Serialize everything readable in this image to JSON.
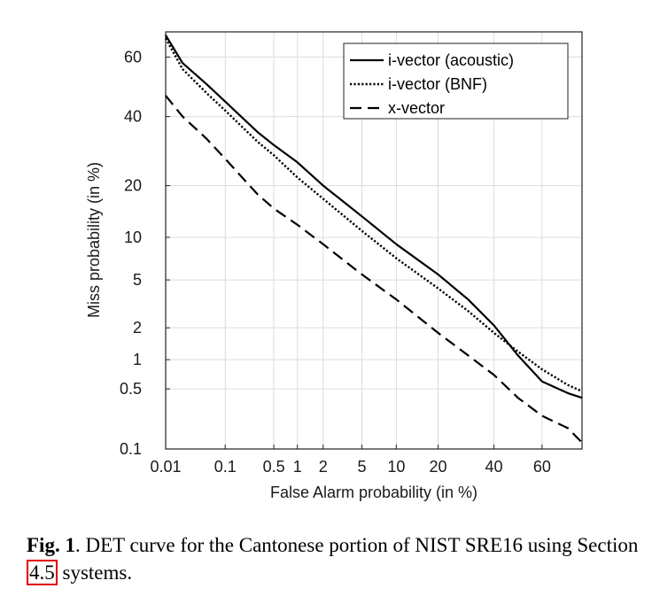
{
  "chart_data": {
    "type": "line",
    "title": "",
    "xlabel": "False Alarm probability (in %)",
    "ylabel": "Miss probability (in %)",
    "scale": "normal-deviate (probit) on both axes",
    "xlim": [
      0.01,
      75
    ],
    "ylim": [
      0.1,
      68
    ],
    "xticks": [
      {
        "v": 0.01,
        "label": "0.01"
      },
      {
        "v": 0.1,
        "label": "0.1"
      },
      {
        "v": 0.5,
        "label": "0.5"
      },
      {
        "v": 1,
        "label": "1"
      },
      {
        "v": 2,
        "label": "2"
      },
      {
        "v": 5,
        "label": "5"
      },
      {
        "v": 10,
        "label": "10"
      },
      {
        "v": 20,
        "label": "20"
      },
      {
        "v": 40,
        "label": "40"
      },
      {
        "v": 60,
        "label": "60"
      }
    ],
    "yticks": [
      {
        "v": 0.1,
        "label": "0.1"
      },
      {
        "v": 0.5,
        "label": "0.5"
      },
      {
        "v": 1,
        "label": "1"
      },
      {
        "v": 2,
        "label": "2"
      },
      {
        "v": 5,
        "label": "5"
      },
      {
        "v": 10,
        "label": "10"
      },
      {
        "v": 20,
        "label": "20"
      },
      {
        "v": 40,
        "label": "40"
      },
      {
        "v": 60,
        "label": "60"
      }
    ],
    "grid": true,
    "legend_position": "top-right",
    "series": [
      {
        "name": "i-vector (acoustic)",
        "style": "solid",
        "color": "#000000",
        "points": [
          [
            0.01,
            67
          ],
          [
            0.02,
            58
          ],
          [
            0.05,
            51
          ],
          [
            0.1,
            45
          ],
          [
            0.3,
            35
          ],
          [
            0.5,
            31
          ],
          [
            1,
            26
          ],
          [
            2,
            20
          ],
          [
            5,
            13.5
          ],
          [
            10,
            9
          ],
          [
            20,
            5.5
          ],
          [
            30,
            3.5
          ],
          [
            40,
            2.1
          ],
          [
            50,
            1.1
          ],
          [
            60,
            0.6
          ],
          [
            70,
            0.45
          ],
          [
            75,
            0.4
          ]
        ]
      },
      {
        "name": "i-vector (BNF)",
        "style": "dotted",
        "color": "#000000",
        "points": [
          [
            0.01,
            66
          ],
          [
            0.02,
            56
          ],
          [
            0.05,
            48
          ],
          [
            0.1,
            42
          ],
          [
            0.3,
            32
          ],
          [
            0.5,
            28
          ],
          [
            1,
            22
          ],
          [
            2,
            17
          ],
          [
            5,
            11
          ],
          [
            10,
            7.2
          ],
          [
            20,
            4.3
          ],
          [
            30,
            2.8
          ],
          [
            40,
            1.8
          ],
          [
            50,
            1.2
          ],
          [
            60,
            0.8
          ],
          [
            70,
            0.55
          ],
          [
            75,
            0.47
          ]
        ]
      },
      {
        "name": "x-vector",
        "style": "dashed",
        "color": "#000000",
        "points": [
          [
            0.01,
            47
          ],
          [
            0.02,
            40
          ],
          [
            0.05,
            33
          ],
          [
            0.1,
            27
          ],
          [
            0.3,
            18
          ],
          [
            0.5,
            15
          ],
          [
            1,
            12
          ],
          [
            2,
            9
          ],
          [
            5,
            5.5
          ],
          [
            10,
            3.5
          ],
          [
            20,
            1.8
          ],
          [
            30,
            1.1
          ],
          [
            40,
            0.7
          ],
          [
            50,
            0.4
          ],
          [
            60,
            0.25
          ],
          [
            70,
            0.18
          ],
          [
            75,
            0.12
          ]
        ]
      }
    ]
  },
  "caption": {
    "fig_label": "Fig. 1",
    "text_before": ".  DET curve for the Cantonese portion of NIST SRE16 using Section ",
    "ref": "4.5",
    "text_after": " systems."
  }
}
